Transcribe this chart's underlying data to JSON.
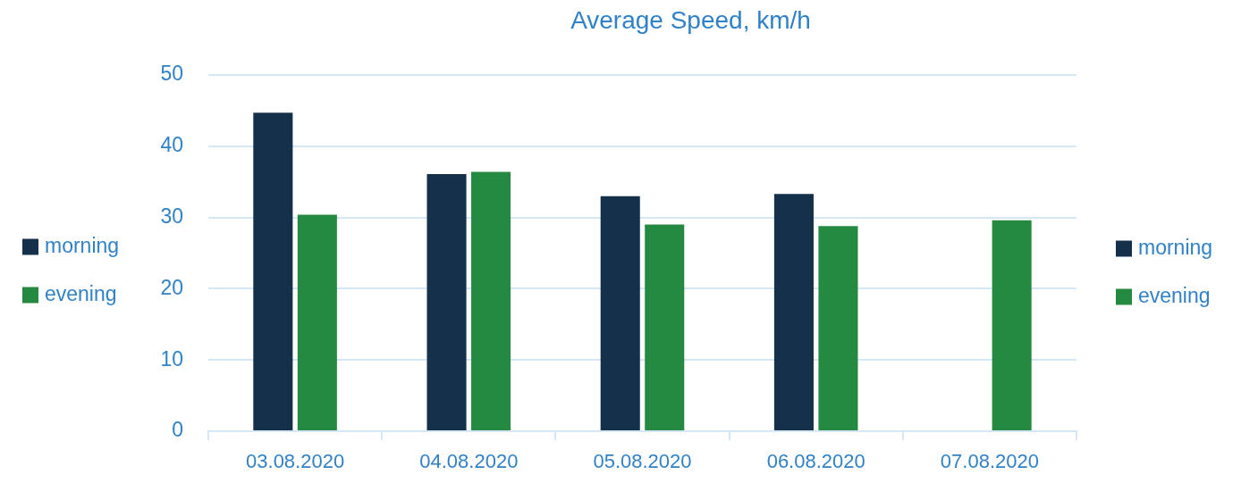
{
  "chart_data": {
    "type": "bar",
    "title": "Average Speed, km/h",
    "categories": [
      "03.08.2020",
      "04.08.2020",
      "05.08.2020",
      "06.08.2020",
      "07.08.2020"
    ],
    "series": [
      {
        "name": "morning",
        "color": "#14304a",
        "values": [
          44.7,
          36.1,
          33.0,
          33.3,
          null
        ]
      },
      {
        "name": "evening",
        "color": "#258a41",
        "values": [
          30.4,
          36.4,
          29.0,
          28.8,
          29.6
        ]
      }
    ],
    "ylim": [
      0,
      50
    ],
    "yticks": [
      0,
      10,
      20,
      30,
      40,
      50
    ],
    "grid": "y",
    "legend": [
      "left",
      "right"
    ]
  }
}
